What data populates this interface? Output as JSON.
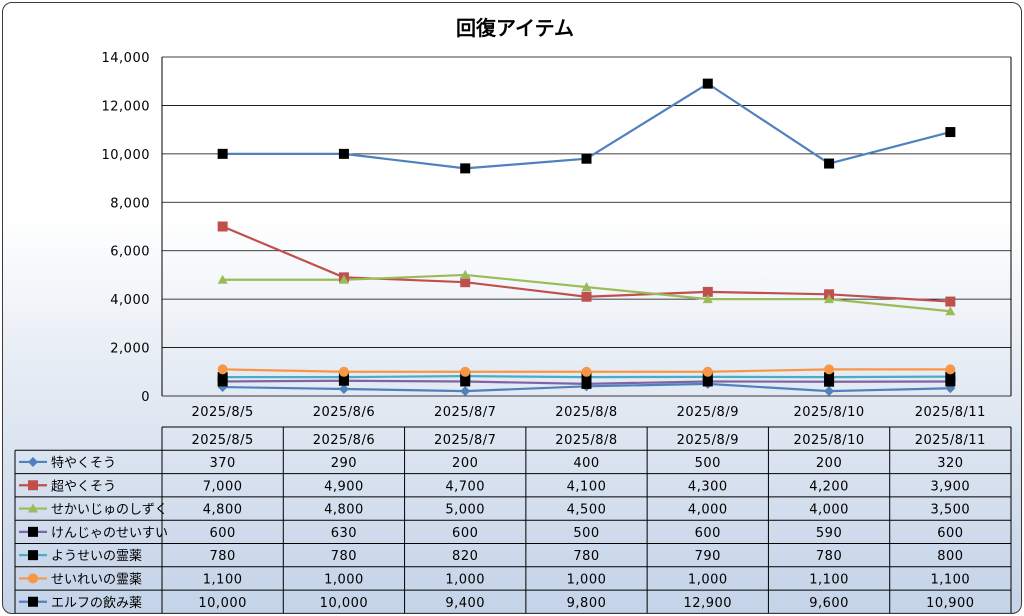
{
  "chart_data": {
    "type": "line",
    "title": "回復アイテム",
    "categories": [
      "2025/8/5",
      "2025/8/6",
      "2025/8/7",
      "2025/8/8",
      "2025/8/9",
      "2025/8/10",
      "2025/8/11"
    ],
    "ylim": [
      0,
      14000
    ],
    "yticks": [
      "0",
      "2,000",
      "4,000",
      "6,000",
      "8,000",
      "10,000",
      "12,000",
      "14,000"
    ],
    "ytick_values": [
      0,
      2000,
      4000,
      6000,
      8000,
      10000,
      12000,
      14000
    ],
    "grid": true,
    "legend": "data-table",
    "series": [
      {
        "name": "特やくそう",
        "color": "#4f81bd",
        "marker": "diamond",
        "values": [
          370,
          290,
          200,
          400,
          500,
          200,
          320
        ],
        "labels": [
          "370",
          "290",
          "200",
          "400",
          "500",
          "200",
          "320"
        ]
      },
      {
        "name": "超やくそう",
        "color": "#c0504d",
        "marker": "square",
        "values": [
          7000,
          4900,
          4700,
          4100,
          4300,
          4200,
          3900
        ],
        "labels": [
          "7,000",
          "4,900",
          "4,700",
          "4,100",
          "4,300",
          "4,200",
          "3,900"
        ]
      },
      {
        "name": "せかいじゅのしずく",
        "color": "#9bbb59",
        "marker": "triangle",
        "values": [
          4800,
          4800,
          5000,
          4500,
          4000,
          4000,
          3500
        ],
        "labels": [
          "4,800",
          "4,800",
          "5,000",
          "4,500",
          "4,000",
          "4,000",
          "3,500"
        ]
      },
      {
        "name": "けんじゃのせいすい",
        "color": "#8064a2",
        "marker": "square-black",
        "values": [
          600,
          630,
          600,
          500,
          600,
          590,
          600
        ],
        "labels": [
          "600",
          "630",
          "600",
          "500",
          "600",
          "590",
          "600"
        ]
      },
      {
        "name": "ようせいの霊薬",
        "color": "#4bacc6",
        "marker": "square-black",
        "values": [
          780,
          780,
          820,
          780,
          790,
          780,
          800
        ],
        "labels": [
          "780",
          "780",
          "820",
          "780",
          "790",
          "780",
          "800"
        ]
      },
      {
        "name": "せいれいの霊薬",
        "color": "#f79646",
        "marker": "circle",
        "values": [
          1100,
          1000,
          1000,
          1000,
          1000,
          1100,
          1100
        ],
        "labels": [
          "1,100",
          "1,000",
          "1,000",
          "1,000",
          "1,000",
          "1,100",
          "1,100"
        ]
      },
      {
        "name": "エルフの飲み薬",
        "color": "#4f81bd",
        "marker": "square-black",
        "values": [
          10000,
          10000,
          9400,
          9800,
          12900,
          9600,
          10900
        ],
        "labels": [
          "10,000",
          "10,000",
          "9,400",
          "9,800",
          "12,900",
          "9,600",
          "10,900"
        ]
      }
    ]
  }
}
